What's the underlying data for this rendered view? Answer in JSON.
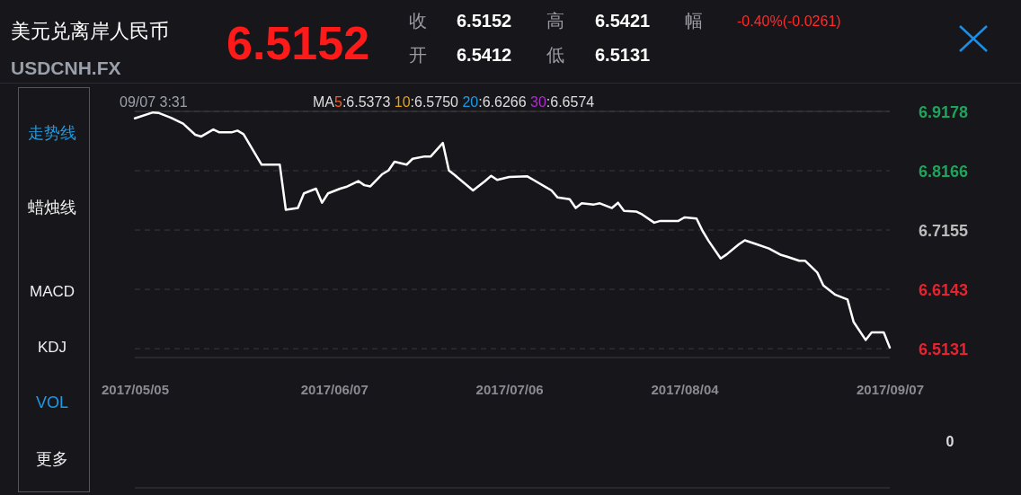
{
  "chart_data": {
    "type": "line",
    "title": "美元兑离岸人民币",
    "subtitle": "USDCNH.FX",
    "annotations": [
      "6.5152",
      "收",
      "6.5152",
      "高",
      "6.5421",
      "幅",
      "-0.40%(-0.0261)",
      "开",
      "6.5412",
      "低",
      "6.5131",
      "09/07 3:31",
      "MA5:6.5373 10:6.5750 20:6.6266 30:6.6574",
      "走势线",
      "蜡烛线",
      "MACD",
      "KDJ",
      "VOL",
      "更多",
      "0"
    ],
    "x": [
      "2017-05-05",
      "2017-05-08",
      "2017-05-09",
      "2017-05-11",
      "2017-05-13",
      "2017-05-15",
      "2017-05-16",
      "2017-05-18",
      "2017-05-19",
      "2017-05-21",
      "2017-05-22",
      "2017-05-23",
      "2017-05-26",
      "2017-05-29",
      "2017-05-30",
      "2017-06-01",
      "2017-06-02",
      "2017-06-04",
      "2017-06-05",
      "2017-06-06",
      "2017-06-08",
      "2017-06-09",
      "2017-06-11",
      "2017-06-12",
      "2017-06-13",
      "2017-06-15",
      "2017-06-16",
      "2017-06-17",
      "2017-06-19",
      "2017-06-20",
      "2017-06-22",
      "2017-06-23",
      "2017-06-25",
      "2017-06-26",
      "2017-06-27",
      "2017-06-30",
      "2017-07-02",
      "2017-07-03",
      "2017-07-04",
      "2017-07-06",
      "2017-07-09",
      "2017-07-10",
      "2017-07-12",
      "2017-07-13",
      "2017-07-14",
      "2017-07-16",
      "2017-07-17",
      "2017-07-18",
      "2017-07-20",
      "2017-07-21",
      "2017-07-23",
      "2017-07-24",
      "2017-07-25",
      "2017-07-27",
      "2017-07-28",
      "2017-07-30",
      "2017-07-31",
      "2017-08-03",
      "2017-08-04",
      "2017-08-06",
      "2017-08-07",
      "2017-08-08",
      "2017-08-10",
      "2017-08-11",
      "2017-08-13",
      "2017-08-14",
      "2017-08-16",
      "2017-08-18",
      "2017-08-20",
      "2017-08-21",
      "2017-08-23",
      "2017-08-24",
      "2017-08-26",
      "2017-08-27",
      "2017-08-29",
      "2017-08-31",
      "2017-09-01",
      "2017-09-03",
      "2017-09-04",
      "2017-09-06",
      "2017-09-07"
    ],
    "series": [
      {
        "color": "#ffffff",
        "values": [
          6.906,
          6.916,
          6.915,
          6.907,
          6.897,
          6.878,
          6.875,
          6.887,
          6.882,
          6.882,
          6.885,
          6.879,
          6.827,
          6.827,
          6.75,
          6.753,
          6.778,
          6.786,
          6.762,
          6.778,
          6.786,
          6.789,
          6.799,
          6.792,
          6.79,
          6.811,
          6.817,
          6.832,
          6.827,
          6.837,
          6.841,
          6.841,
          6.864,
          6.817,
          6.809,
          6.783,
          6.799,
          6.808,
          6.801,
          6.806,
          6.807,
          6.801,
          6.789,
          6.783,
          6.771,
          6.768,
          6.753,
          6.761,
          6.759,
          6.761,
          6.753,
          6.762,
          6.748,
          6.747,
          6.742,
          6.728,
          6.731,
          6.731,
          6.737,
          6.735,
          6.714,
          6.697,
          6.667,
          6.674,
          6.691,
          6.698,
          6.691,
          6.684,
          6.673,
          6.67,
          6.663,
          6.663,
          6.643,
          6.621,
          6.605,
          6.597,
          6.559,
          6.528,
          6.541,
          6.541,
          6.515
        ]
      }
    ],
    "xlim": [
      "2017-05-05",
      "2017-09-07"
    ],
    "xticks": [
      {
        "value": "2017-05-05",
        "label": "2017/05/05"
      },
      {
        "value": "2017-06-07",
        "label": "2017/06/07"
      },
      {
        "value": "2017-07-06",
        "label": "2017/07/06"
      },
      {
        "value": "2017-08-04",
        "label": "2017/08/04"
      },
      {
        "value": "2017-09-07",
        "label": "2017/09/07"
      }
    ],
    "ylim": [
      6.498,
      6.9178
    ],
    "yticks": [
      6.9178,
      6.8166,
      6.7155,
      6.6143,
      6.5131
    ],
    "grid": "y",
    "marker": "none",
    "line_style": "solid"
  }
}
